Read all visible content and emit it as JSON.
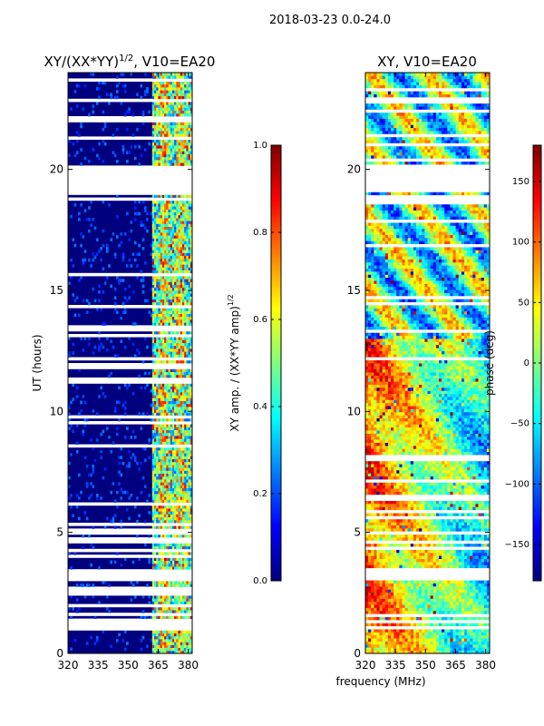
{
  "suptitle": "2018-03-23 0.0-24.0",
  "colors": {
    "jet": [
      "#00007f",
      "#0000ff",
      "#007fff",
      "#00ffff",
      "#7fff7f",
      "#ffff00",
      "#ff7f00",
      "#ff0000",
      "#7f0000"
    ],
    "background": "#ffffff",
    "axis": "#000000"
  },
  "chart_data": [
    {
      "type": "heatmap",
      "title_main": "XY/(XX*YY)",
      "title_sup": "1/2",
      "title_tail": ", V10=EA20",
      "xlabel": "",
      "ylabel": "UT (hours)",
      "xlim": [
        320,
        382
      ],
      "ylim": [
        0,
        24
      ],
      "xticks": [
        320,
        335,
        350,
        365,
        380
      ],
      "yticks": [
        0,
        5,
        10,
        15,
        20
      ],
      "colorbar": {
        "label_main": "XY amp. / (XX*YY amp)",
        "label_sup": "1/2",
        "range": [
          0.0,
          1.0
        ],
        "ticks": [
          0.0,
          0.2,
          0.4,
          0.6,
          0.8,
          1.0
        ],
        "tick_labels": [
          "0.0",
          "0.2",
          "0.4",
          "0.6",
          "0.8",
          "1.0"
        ]
      },
      "gaps_hours": [
        [
          19.0,
          20.1
        ],
        [
          3.0,
          3.4
        ],
        [
          0.9,
          1.1
        ]
      ],
      "high_band_mhz": [
        362,
        382
      ]
    },
    {
      "type": "heatmap",
      "title_main": "XY, V10=EA20",
      "xlabel": "frequency (MHz)",
      "ylabel": "",
      "xlim": [
        320,
        382
      ],
      "ylim": [
        0,
        24
      ],
      "xticks": [
        320,
        335,
        350,
        365,
        380
      ],
      "yticks": [
        0,
        5,
        10,
        15,
        20
      ],
      "colorbar": {
        "label_main": "phase (deg)",
        "range": [
          -180,
          180
        ],
        "ticks": [
          -150,
          -100,
          -50,
          0,
          50,
          100,
          150
        ],
        "tick_labels": [
          "−150",
          "−100",
          "−50",
          "0",
          "50",
          "100",
          "150"
        ]
      },
      "gaps_hours": [
        [
          19.0,
          20.1
        ],
        [
          3.0,
          3.4
        ],
        [
          0.9,
          1.1
        ]
      ]
    }
  ]
}
